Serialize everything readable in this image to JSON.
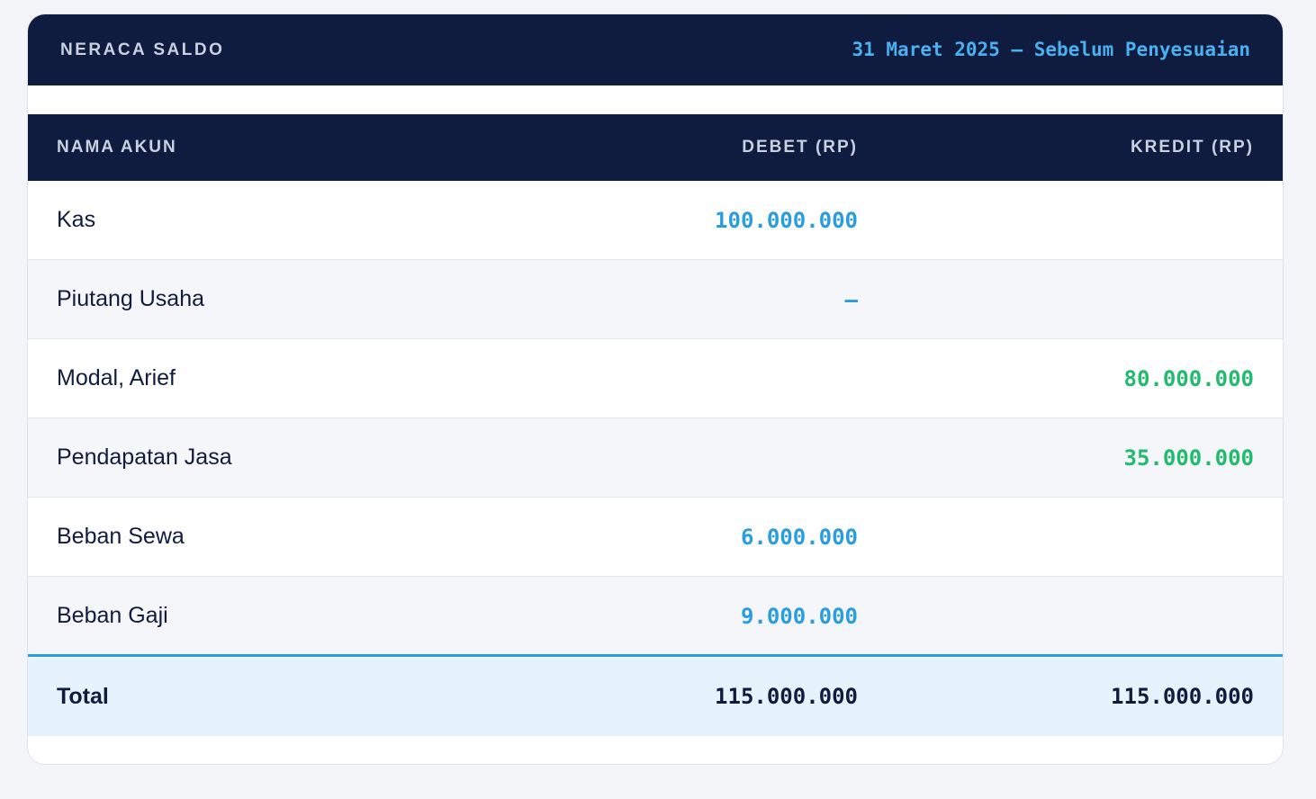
{
  "header": {
    "title": "NERACA SALDO",
    "subtitle": "31 Maret 2025 — Sebelum Penyesuaian"
  },
  "table": {
    "columns": [
      "NAMA AKUN",
      "DEBET (RP)",
      "KREDIT (RP)"
    ],
    "rows": [
      {
        "account": "Kas",
        "debit": "100.000.000"
      },
      {
        "account": "Piutang Usaha",
        "debit": "—"
      },
      {
        "account": "Modal, Arief",
        "credit": "80.000.000"
      },
      {
        "account": "Pendapatan Jasa",
        "credit": "35.000.000"
      },
      {
        "account": "Beban Sewa",
        "debit": "6.000.000"
      },
      {
        "account": "Beban Gaji",
        "debit": "9.000.000"
      }
    ],
    "total": {
      "label": "Total",
      "debit": "115.000.000",
      "credit": "115.000.000"
    }
  }
}
